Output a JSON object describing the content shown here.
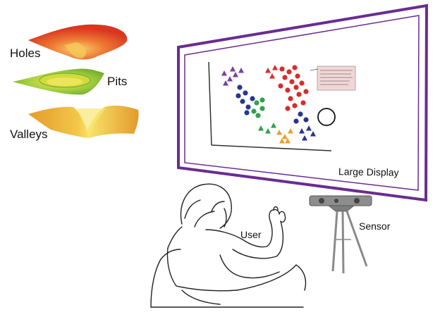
{
  "surfaces": {
    "holes": {
      "label": "Holes",
      "color": "#e8462a"
    },
    "pits": {
      "label": "Pits",
      "color": "#8fc63e"
    },
    "valleys": {
      "label": "Valleys",
      "color": "#e5a52d"
    }
  },
  "display": {
    "label": "Large Display",
    "frame_color": "#6a2c91"
  },
  "user": {
    "label": "User"
  },
  "sensor": {
    "label": "Sensor"
  },
  "cluster_colors": {
    "purple": "#7b3fa0",
    "blue": "#2a3590",
    "green": "#2fa24a",
    "red": "#d82b2b",
    "orange": "#e9a12c"
  }
}
